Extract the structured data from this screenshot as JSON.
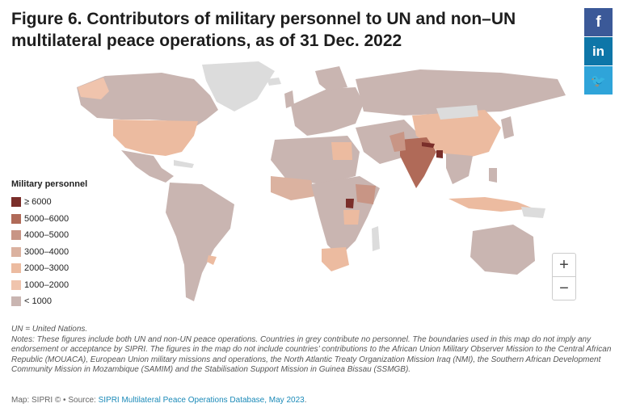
{
  "title": "Figure 6. Contributors of military personnel to UN and non–UN multilateral peace operations, as of 31 Dec. 2022",
  "share": {
    "facebook": {
      "label": "f",
      "icon": "facebook-icon"
    },
    "linkedin": {
      "label": "in",
      "icon": "linkedin-icon"
    },
    "twitter": {
      "label": "🐦",
      "icon": "twitter-icon"
    }
  },
  "legend": {
    "title": "Military personnel",
    "items": [
      {
        "label": "≥ 6000",
        "color": "#7a2e2a"
      },
      {
        "label": "5000–6000",
        "color": "#b06a58"
      },
      {
        "label": "4000–5000",
        "color": "#c89585"
      },
      {
        "label": "3000–4000",
        "color": "#dbb2a0"
      },
      {
        "label": "2000–3000",
        "color": "#ecbba0"
      },
      {
        "label": "1000–2000",
        "color": "#f0c4ad"
      },
      {
        "label": "< 1000",
        "color": "#c9b5b1"
      }
    ]
  },
  "colors": {
    "no_personnel": "#dcdcdc",
    "ocean": "#ffffff"
  },
  "zoom": {
    "in_label": "+",
    "out_label": "−"
  },
  "notes": {
    "line1": "UN = United Nations.",
    "line2": "Notes: These figures include both UN and non-UN peace operations. Countries in grey contribute no personnel. The boundaries used in this map do not imply any endorsement or acceptance by SIPRI. The figures in the map do not include countries’ contributions to the African Union Military Observer Mission to the Central African Republic (MOUACA), European Union military missions and operations, the North Atlantic Treaty Organization Mission Iraq (NMI), the Southern African Development Community Mission in Mozambique (SAMIM) and the Stabilisation Support Mission in Guinea Bissau (SSMGB)."
  },
  "source": {
    "prefix": "Map: SIPRI © • Source: ",
    "link": "SIPRI Multilateral Peace Operations Database, May 2023",
    "suffix": "."
  }
}
